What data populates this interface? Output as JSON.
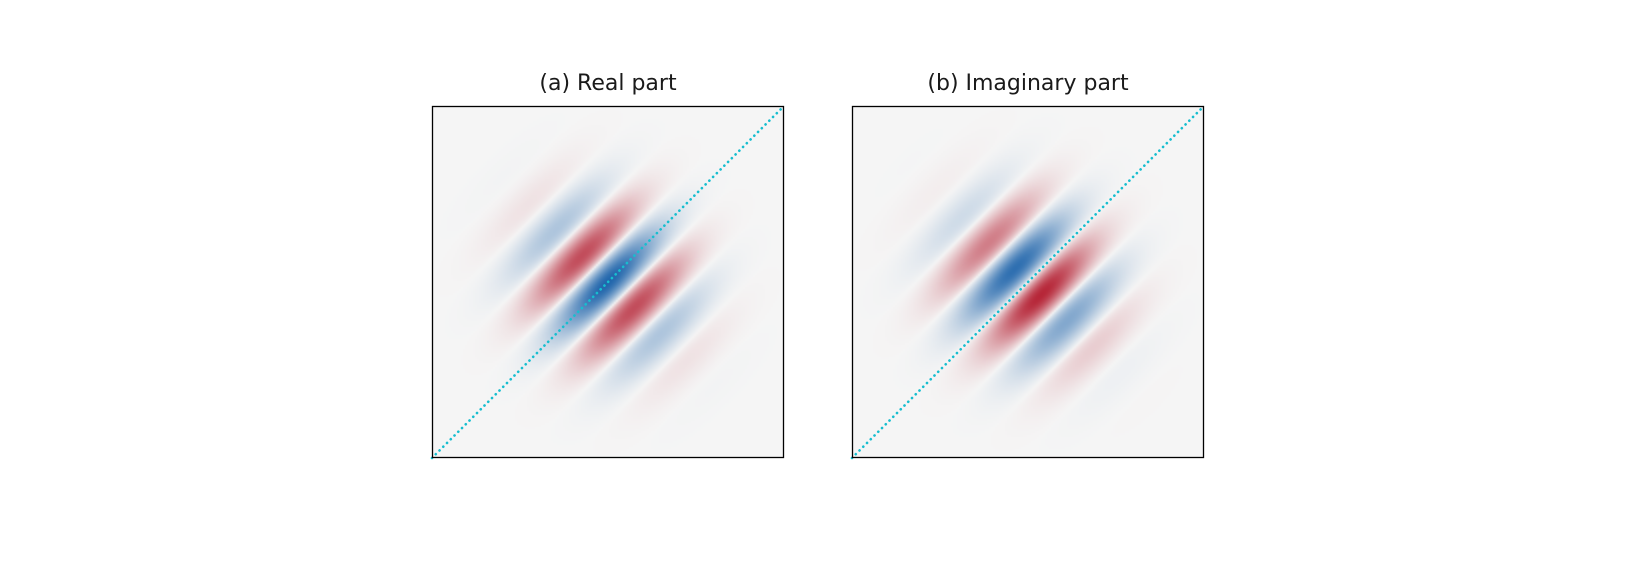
{
  "figure": {
    "background_color": "#ffffff"
  },
  "colors": {
    "positive": "#b2182b",
    "negative": "#2166ac",
    "neutral": "#f5f5f5",
    "diagonal": "#17becf",
    "frame": "#000000"
  },
  "chart_data": [
    {
      "type": "heatmap",
      "title": "(a) Real part",
      "xlabel": "",
      "ylabel": "",
      "ticks": "none",
      "colormap": "RdBu diverging (red = positive, blue = negative, white-grey = zero)",
      "xlim": [
        -1,
        1
      ],
      "ylim": [
        -1,
        1
      ],
      "function": {
        "component": "real",
        "center": [
          0,
          0
        ],
        "envelope_sigma_along_diagonal": 0.25,
        "envelope_sigma_across_diagonal": 0.27,
        "oscillation": "cos",
        "wavenumber_across_diagonal": 14.0,
        "phase": 3.14159,
        "amplitude": 1.0
      },
      "reference_line": {
        "style": "dotted",
        "from": [
          -1,
          -1
        ],
        "to": [
          1,
          1
        ]
      }
    },
    {
      "type": "heatmap",
      "title": "(b) Imaginary part",
      "xlabel": "",
      "ylabel": "",
      "ticks": "none",
      "colormap": "RdBu diverging (red = positive, blue = negative, white-grey = zero)",
      "xlim": [
        -1,
        1
      ],
      "ylim": [
        -1,
        1
      ],
      "function": {
        "component": "imaginary",
        "center": [
          0,
          0
        ],
        "envelope_sigma_along_diagonal": 0.25,
        "envelope_sigma_across_diagonal": 0.27,
        "oscillation": "sin",
        "wavenumber_across_diagonal": 14.0,
        "phase": 0.0,
        "amplitude": 1.0
      },
      "reference_line": {
        "style": "dotted",
        "from": [
          -1,
          -1
        ],
        "to": [
          1,
          1
        ]
      }
    }
  ]
}
